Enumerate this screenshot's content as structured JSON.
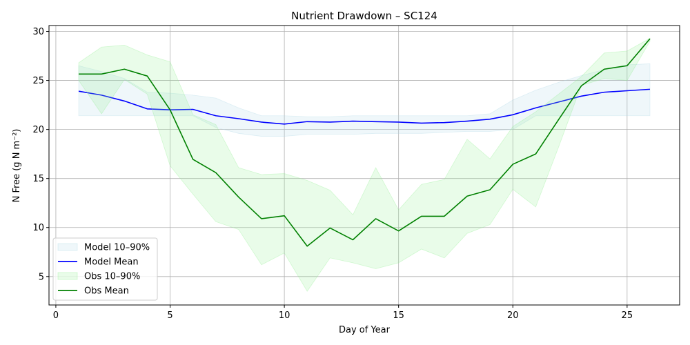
{
  "chart_data": {
    "type": "line",
    "title": "Nutrient Drawdown – SC124",
    "xlabel": "Day of Year",
    "ylabel": "N Free (g N m⁻²)",
    "xlim": [
      -0.3,
      27.3
    ],
    "ylim": [
      2.1,
      30.6
    ],
    "xticks": [
      0,
      5,
      10,
      15,
      20,
      25
    ],
    "yticks": [
      5,
      10,
      15,
      20,
      25,
      30
    ],
    "grid": true,
    "legend_position": "lower-left",
    "x": [
      1,
      2,
      3,
      4,
      5,
      6,
      7,
      8,
      9,
      10,
      11,
      12,
      13,
      14,
      15,
      16,
      17,
      18,
      19,
      20,
      21,
      22,
      23,
      24,
      25,
      26
    ],
    "series": [
      {
        "name": "Model 10–90%",
        "kind": "band",
        "color": "#add8e6",
        "opacity": 0.2,
        "lower": [
          21.4,
          21.4,
          21.4,
          21.4,
          21.4,
          21.4,
          20.2,
          19.6,
          19.3,
          19.3,
          19.5,
          19.5,
          19.5,
          19.6,
          19.6,
          19.6,
          19.7,
          19.8,
          19.8,
          20.0,
          21.4,
          21.4,
          21.4,
          21.4,
          21.4,
          21.4
        ],
        "upper": [
          26.5,
          25.9,
          25.2,
          23.8,
          23.7,
          23.5,
          23.2,
          22.2,
          21.4,
          21.4,
          21.3,
          21.3,
          21.4,
          21.4,
          21.4,
          21.4,
          21.4,
          21.4,
          21.6,
          23.0,
          24.0,
          24.8,
          25.5,
          26.1,
          26.6,
          26.7
        ]
      },
      {
        "name": "Model Mean",
        "kind": "line",
        "color": "#0000ff",
        "values": [
          23.9,
          23.5,
          22.9,
          22.1,
          22.0,
          22.05,
          21.4,
          21.1,
          20.75,
          20.55,
          20.8,
          20.75,
          20.85,
          20.8,
          20.75,
          20.65,
          20.7,
          20.85,
          21.05,
          21.5,
          22.2,
          22.8,
          23.4,
          23.8,
          23.95,
          24.1
        ]
      },
      {
        "name": "Obs 10–90%",
        "kind": "band",
        "color": "#90ee90",
        "opacity": 0.2,
        "lower": [
          25.0,
          21.6,
          25.1,
          23.6,
          16.3,
          13.4,
          10.6,
          9.8,
          6.2,
          7.4,
          3.5,
          6.9,
          6.4,
          5.8,
          6.4,
          7.8,
          6.9,
          9.4,
          10.3,
          13.9,
          12.1,
          18.2,
          24.5,
          25.2,
          25.0,
          29.0
        ],
        "upper": [
          26.8,
          28.4,
          28.6,
          27.6,
          26.9,
          21.5,
          20.5,
          16.1,
          15.4,
          15.5,
          14.8,
          13.8,
          11.3,
          16.1,
          11.8,
          14.4,
          14.9,
          19.0,
          17.0,
          20.3,
          21.8,
          23.6,
          25.4,
          27.8,
          28.0,
          29.3
        ]
      },
      {
        "name": "Obs Mean",
        "kind": "line",
        "color": "#008000",
        "values": [
          25.65,
          25.65,
          26.15,
          25.45,
          22.0,
          16.95,
          15.6,
          13.1,
          10.9,
          11.2,
          8.1,
          9.95,
          8.75,
          10.9,
          9.65,
          11.15,
          11.15,
          13.2,
          13.85,
          16.45,
          17.5,
          21.0,
          24.45,
          26.15,
          26.5,
          29.25
        ]
      }
    ]
  }
}
